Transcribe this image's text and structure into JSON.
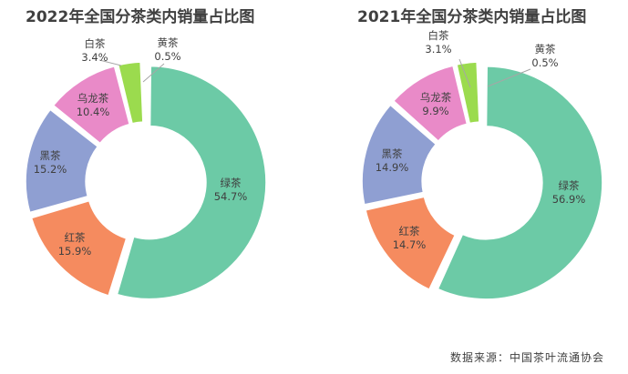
{
  "source_note": "数据来源：中国茶叶流通协会",
  "chart_data": [
    {
      "type": "pie",
      "title": "2022年全国分茶类内销量占比图",
      "categories": [
        "绿茶",
        "红茶",
        "黑茶",
        "乌龙茶",
        "白茶",
        "黄茶"
      ],
      "values": [
        54.7,
        15.9,
        15.2,
        10.4,
        3.4,
        0.5
      ],
      "value_labels": [
        "54.7%",
        "15.9%",
        "15.2%",
        "10.4%",
        "3.4%",
        "0.5%"
      ],
      "colors": [
        "#6ccaa6",
        "#f58b5f",
        "#8f9fd2",
        "#e98ac8",
        "#9bdb4e",
        "#ffd23a"
      ],
      "donut": true,
      "exploded": true
    },
    {
      "type": "pie",
      "title": "2021年全国分茶类内销量占比图",
      "categories": [
        "绿茶",
        "红茶",
        "黑茶",
        "乌龙茶",
        "白茶",
        "黄茶"
      ],
      "values": [
        56.9,
        14.7,
        14.9,
        9.9,
        3.1,
        0.5
      ],
      "value_labels": [
        "56.9%",
        "14.7%",
        "14.9%",
        "9.9%",
        "3.1%",
        "0.5%"
      ],
      "colors": [
        "#6ccaa6",
        "#f58b5f",
        "#8f9fd2",
        "#e98ac8",
        "#9bdb4e",
        "#ffd23a"
      ],
      "donut": true,
      "exploded": true
    }
  ]
}
